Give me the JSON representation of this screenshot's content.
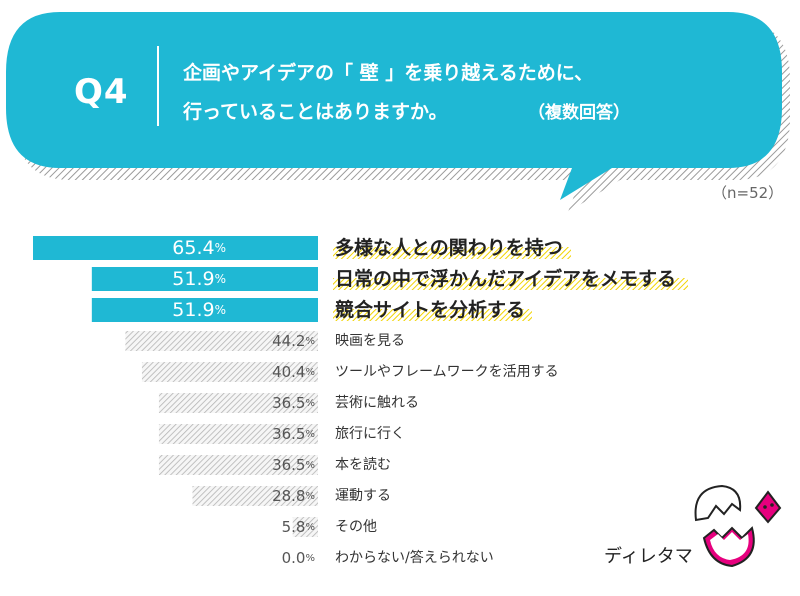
{
  "question": {
    "number": "Q4",
    "line1": "企画やアイデアの「 壁 」を乗り越えるために、",
    "line2": "行っていることはありますか。",
    "note": "（複数回答）"
  },
  "sample_size": "（n=52）",
  "logo": {
    "text": "ディレタマ"
  },
  "colors": {
    "accent": "#1fb8d4",
    "highlight": "#ffe600",
    "hatch": "#b4b4b4",
    "text": "#333333",
    "muted": "#666666"
  },
  "chart_data": {
    "type": "bar",
    "orientation": "horizontal",
    "categories": [
      "多様な人との関わりを持つ",
      "日常の中で浮かんだアイデアをメモする",
      "競合サイトを分析する",
      "映画を見る",
      "ツールやフレームワークを活用する",
      "芸術に触れる",
      "旅行に行く",
      "本を読む",
      "運動する",
      "その他",
      "わからない/答えられない"
    ],
    "values": [
      65.4,
      51.9,
      51.9,
      44.2,
      40.4,
      36.5,
      36.5,
      36.5,
      28.8,
      5.8,
      0.0
    ],
    "value_labels": [
      "65.4",
      "51.9",
      "51.9",
      "44.2",
      "40.4",
      "36.5",
      "36.5",
      "36.5",
      "28.8",
      "5.8",
      "0.0"
    ],
    "unit": "%",
    "highlighted_top": 3
  }
}
